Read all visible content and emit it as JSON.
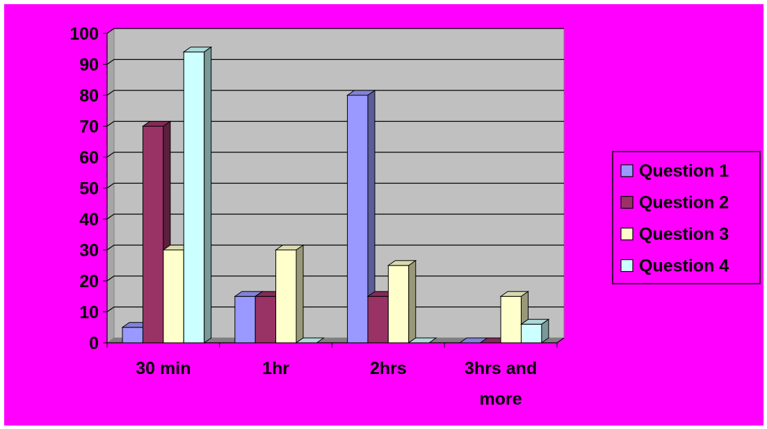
{
  "colors": {
    "background": "#ff00ff",
    "plot_wall": "#c0c0c0",
    "plot_floor": "#808080",
    "series": [
      "#9999ff",
      "#993366",
      "#ffffcc",
      "#ccffff"
    ]
  },
  "chart_data": {
    "type": "bar",
    "title": "",
    "xlabel": "",
    "ylabel": "",
    "ylim": [
      0,
      100
    ],
    "yticks": [
      "0",
      "10",
      "20",
      "30",
      "40",
      "50",
      "60",
      "70",
      "80",
      "90",
      "100"
    ],
    "grid": true,
    "legend_position": "right",
    "categories": [
      [
        "30 min"
      ],
      [
        "1hr"
      ],
      [
        "2hrs"
      ],
      [
        "3hrs and",
        "more"
      ]
    ],
    "series": [
      {
        "name": "Question 1",
        "values": [
          5,
          15,
          80,
          0
        ]
      },
      {
        "name": "Question 2",
        "values": [
          70,
          15,
          15,
          0
        ]
      },
      {
        "name": "Question 3",
        "values": [
          30,
          30,
          25,
          15
        ]
      },
      {
        "name": "Question 4",
        "values": [
          94,
          0,
          0,
          6
        ]
      }
    ]
  }
}
